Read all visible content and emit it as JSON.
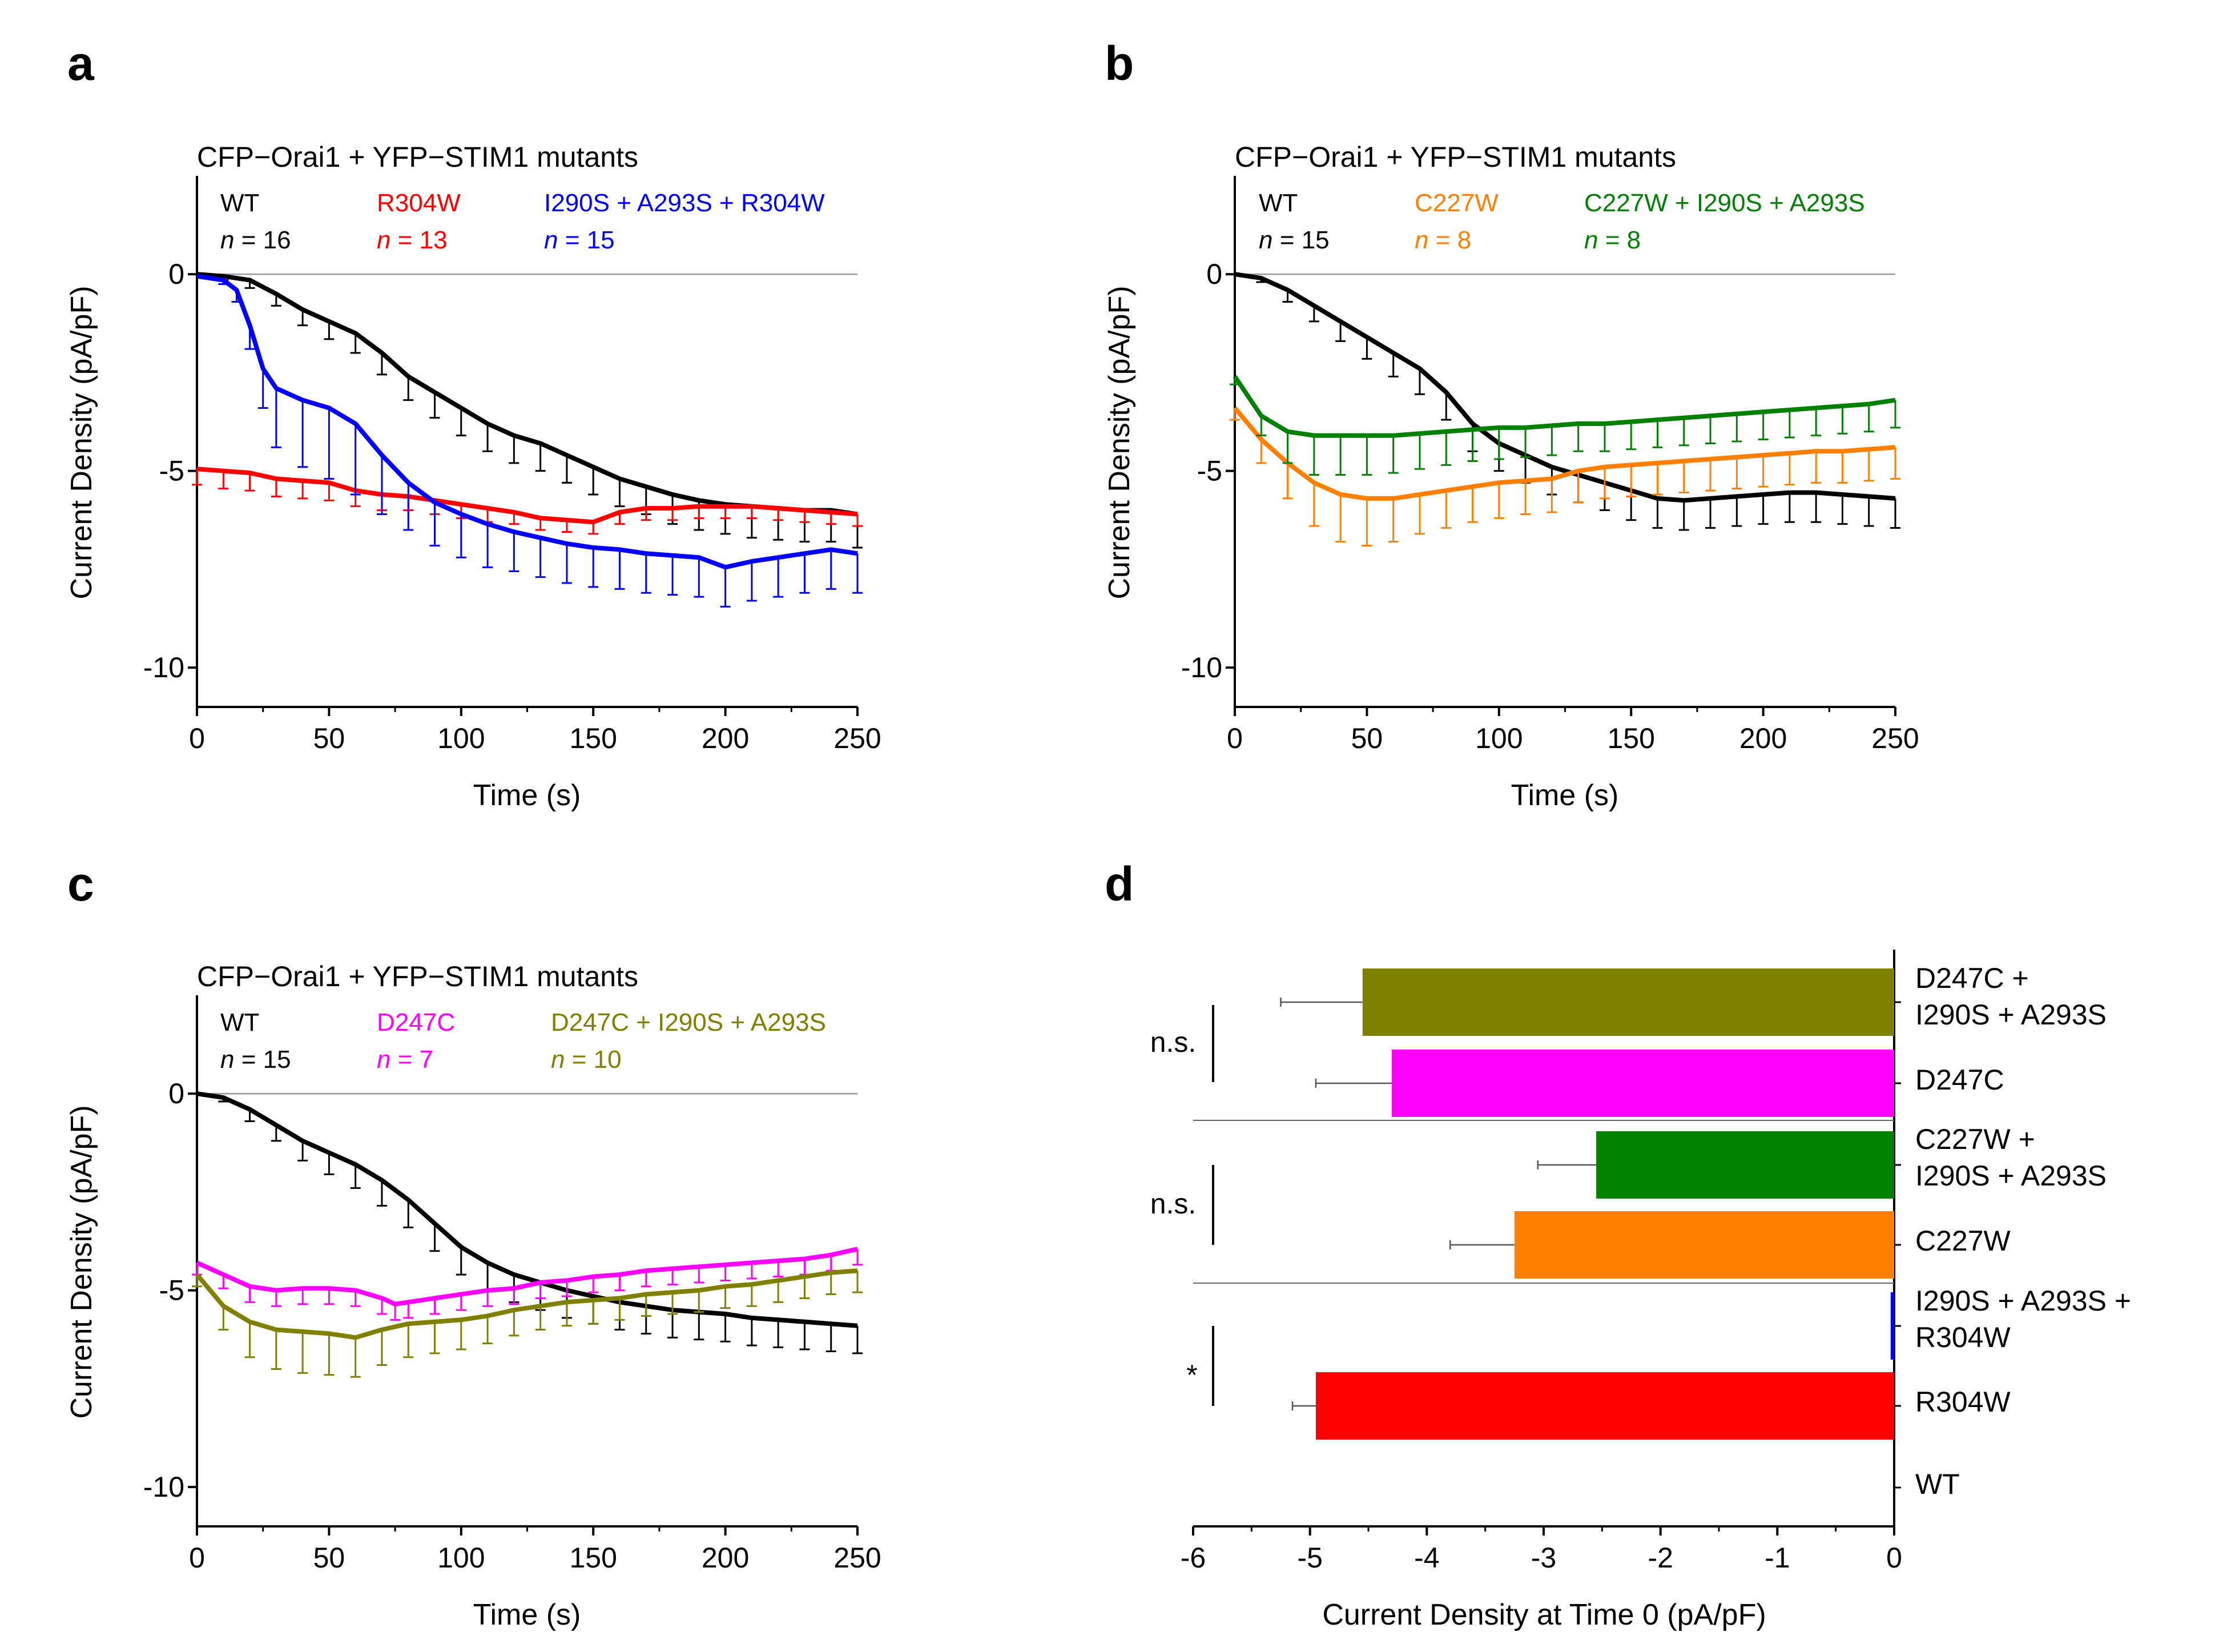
{
  "panels": [
    {
      "letter": "a",
      "title": "CFP−Orai1 + YFP−STIM1 mutants",
      "xlabel": "Time (s)",
      "ylabel": "Current Density (pA/pF)",
      "xticks": [
        "0",
        "50",
        "100",
        "150",
        "200",
        "250"
      ],
      "yticks": [
        "0",
        "-5",
        "-10"
      ],
      "legend": [
        {
          "name": "WT",
          "n_prefix": "n",
          "n_text": " = 16",
          "color": "#000000"
        },
        {
          "name": "R304W",
          "n_prefix": "n",
          "n_text": " = 13",
          "color": "#ff0000"
        },
        {
          "name": "I290S + A293S + R304W",
          "n_prefix": "n",
          "n_text": " = 15",
          "color": "#0000ff"
        }
      ]
    },
    {
      "letter": "b",
      "title": "CFP−Orai1 + YFP−STIM1 mutants",
      "xlabel": "Time (s)",
      "ylabel": "Current Density (pA/pF)",
      "xticks": [
        "0",
        "50",
        "100",
        "150",
        "200",
        "250"
      ],
      "yticks": [
        "0",
        "-5",
        "-10"
      ],
      "legend": [
        {
          "name": "WT",
          "n_prefix": "n",
          "n_text": " = 15",
          "color": "#000000"
        },
        {
          "name": "C227W",
          "n_prefix": "n",
          "n_text": " = 8",
          "color": "#ff8000"
        },
        {
          "name": "C227W + I290S + A293S",
          "n_prefix": "n",
          "n_text": " = 8",
          "color": "#008000"
        }
      ]
    },
    {
      "letter": "c",
      "title": "CFP−Orai1 + YFP−STIM1 mutants",
      "xlabel": "Time (s)",
      "ylabel": "Current Density (pA/pF)",
      "xticks": [
        "0",
        "50",
        "100",
        "150",
        "200",
        "250"
      ],
      "yticks": [
        "0",
        "-5",
        "-10"
      ],
      "legend": [
        {
          "name": "WT",
          "n_prefix": "n",
          "n_text": " = 15",
          "color": "#000000"
        },
        {
          "name": "D247C",
          "n_prefix": "n",
          "n_text": " = 7",
          "color": "#ff00ff"
        },
        {
          "name": "D247C + I290S + A293S",
          "n_prefix": "n",
          "n_text": " = 10",
          "color": "#808000"
        }
      ]
    },
    {
      "letter": "d",
      "xlabel": "Current Density at Time 0 (pA/pF)",
      "xticks": [
        "-6",
        "-5",
        "-4",
        "-3",
        "-2",
        "-1",
        "0"
      ],
      "significance": [
        {
          "label": "n.s."
        },
        {
          "label": "n.s."
        },
        {
          "label": "*"
        }
      ],
      "bar_labels": [
        [
          "D247C +",
          "I290S + A293S"
        ],
        [
          "D247C"
        ],
        [
          "C227W +",
          "I290S + A293S"
        ],
        [
          "C227W"
        ],
        [
          "I290S + A293S +",
          "R304W"
        ],
        [
          "R304W"
        ],
        [
          "WT"
        ]
      ]
    }
  ],
  "chart_data": [
    {
      "type": "line",
      "panel": "a",
      "title": "CFP−Orai1 + YFP−STIM1 mutants",
      "xlabel": "Time (s)",
      "ylabel": "Current Density (pA/pF)",
      "xlim": [
        0,
        250
      ],
      "ylim": [
        -11,
        2.5
      ],
      "zero_line": true,
      "series": [
        {
          "name": "WT",
          "n": 16,
          "color": "#000000",
          "error_direction": "down",
          "x": [
            0,
            10,
            20,
            30,
            40,
            50,
            60,
            70,
            80,
            90,
            100,
            110,
            120,
            130,
            140,
            150,
            160,
            170,
            180,
            190,
            200,
            210,
            220,
            230,
            240,
            250
          ],
          "y": [
            0,
            -0.05,
            -0.15,
            -0.5,
            -0.9,
            -1.2,
            -1.5,
            -2.0,
            -2.6,
            -3.0,
            -3.4,
            -3.8,
            -4.1,
            -4.3,
            -4.6,
            -4.9,
            -5.2,
            -5.4,
            -5.6,
            -5.75,
            -5.85,
            -5.9,
            -5.95,
            -6.0,
            -6.0,
            -6.1
          ],
          "error": [
            0,
            0.1,
            0.2,
            0.3,
            0.4,
            0.45,
            0.5,
            0.55,
            0.6,
            0.65,
            0.7,
            0.7,
            0.7,
            0.7,
            0.7,
            0.7,
            0.7,
            0.7,
            0.75,
            0.75,
            0.75,
            0.8,
            0.8,
            0.8,
            0.8,
            0.85
          ]
        },
        {
          "name": "R304W",
          "n": 13,
          "color": "#ff0000",
          "error_direction": "down",
          "x": [
            0,
            10,
            20,
            30,
            40,
            50,
            60,
            70,
            80,
            90,
            100,
            110,
            120,
            130,
            140,
            150,
            160,
            170,
            180,
            190,
            200,
            210,
            220,
            230,
            240,
            250
          ],
          "y": [
            -4.95,
            -5.0,
            -5.05,
            -5.2,
            -5.25,
            -5.3,
            -5.5,
            -5.6,
            -5.65,
            -5.75,
            -5.85,
            -5.95,
            -6.05,
            -6.2,
            -6.25,
            -6.3,
            -6.05,
            -5.95,
            -5.95,
            -5.9,
            -5.9,
            -5.9,
            -5.95,
            -6.0,
            -6.05,
            -6.1
          ],
          "error": [
            0.4,
            0.45,
            0.45,
            0.45,
            0.45,
            0.45,
            0.4,
            0.4,
            0.35,
            0.35,
            0.35,
            0.35,
            0.3,
            0.3,
            0.3,
            0.3,
            0.3,
            0.3,
            0.3,
            0.3,
            0.3,
            0.3,
            0.3,
            0.3,
            0.3,
            0.3
          ]
        },
        {
          "name": "I290S + A293S + R304W",
          "n": 15,
          "color": "#0000ff",
          "error_direction": "down",
          "x": [
            0,
            10,
            15,
            20,
            25,
            30,
            40,
            50,
            60,
            70,
            80,
            90,
            100,
            110,
            120,
            130,
            140,
            150,
            160,
            170,
            180,
            190,
            200,
            210,
            220,
            230,
            240,
            250
          ],
          "y": [
            -0.05,
            -0.15,
            -0.4,
            -1.3,
            -2.4,
            -2.9,
            -3.2,
            -3.4,
            -3.8,
            -4.6,
            -5.3,
            -5.8,
            -6.1,
            -6.35,
            -6.55,
            -6.7,
            -6.85,
            -6.95,
            -7.0,
            -7.1,
            -7.15,
            -7.2,
            -7.45,
            -7.3,
            -7.2,
            -7.1,
            -7.0,
            -7.1
          ],
          "error": [
            0,
            0.1,
            0.3,
            0.6,
            1.0,
            1.5,
            1.7,
            1.8,
            1.8,
            1.5,
            1.2,
            1.1,
            1.1,
            1.1,
            1.0,
            1.0,
            1.0,
            1.0,
            1.0,
            1.0,
            1.0,
            1.0,
            1.0,
            1.0,
            1.0,
            1.0,
            1.0,
            1.0
          ]
        }
      ]
    },
    {
      "type": "line",
      "panel": "b",
      "title": "CFP−Orai1 + YFP−STIM1 mutants",
      "xlabel": "Time (s)",
      "ylabel": "Current Density (pA/pF)",
      "xlim": [
        0,
        250
      ],
      "ylim": [
        -11,
        2.5
      ],
      "zero_line": true,
      "series": [
        {
          "name": "WT",
          "n": 15,
          "color": "#000000",
          "error_direction": "down",
          "x": [
            0,
            10,
            20,
            30,
            40,
            50,
            60,
            70,
            80,
            90,
            100,
            110,
            120,
            130,
            140,
            150,
            160,
            170,
            180,
            190,
            200,
            210,
            220,
            230,
            240,
            250
          ],
          "y": [
            0,
            -0.1,
            -0.4,
            -0.8,
            -1.2,
            -1.6,
            -2.0,
            -2.4,
            -3.0,
            -3.8,
            -4.3,
            -4.6,
            -4.9,
            -5.1,
            -5.3,
            -5.5,
            -5.7,
            -5.75,
            -5.7,
            -5.65,
            -5.6,
            -5.55,
            -5.55,
            -5.6,
            -5.65,
            -5.7
          ],
          "error": [
            0,
            0.1,
            0.3,
            0.4,
            0.5,
            0.55,
            0.6,
            0.65,
            0.7,
            0.7,
            0.7,
            0.7,
            0.7,
            0.7,
            0.7,
            0.75,
            0.75,
            0.75,
            0.75,
            0.75,
            0.75,
            0.75,
            0.75,
            0.75,
            0.75,
            0.75
          ]
        },
        {
          "name": "C227W",
          "n": 8,
          "color": "#ff8000",
          "error_direction": "down",
          "x": [
            0,
            10,
            20,
            30,
            40,
            50,
            60,
            70,
            80,
            90,
            100,
            110,
            120,
            130,
            140,
            150,
            160,
            170,
            180,
            190,
            200,
            210,
            220,
            230,
            240,
            250
          ],
          "y": [
            -3.4,
            -4.2,
            -4.8,
            -5.3,
            -5.6,
            -5.7,
            -5.7,
            -5.6,
            -5.5,
            -5.4,
            -5.3,
            -5.25,
            -5.2,
            -5.0,
            -4.9,
            -4.85,
            -4.8,
            -4.75,
            -4.7,
            -4.65,
            -4.6,
            -4.55,
            -4.5,
            -4.5,
            -4.45,
            -4.4
          ],
          "error": [
            0.3,
            0.6,
            0.9,
            1.1,
            1.2,
            1.2,
            1.1,
            1.0,
            0.95,
            0.9,
            0.9,
            0.85,
            0.85,
            0.8,
            0.8,
            0.8,
            0.8,
            0.8,
            0.8,
            0.8,
            0.8,
            0.8,
            0.8,
            0.8,
            0.8,
            0.8
          ]
        },
        {
          "name": "C227W + I290S + A293S",
          "n": 8,
          "color": "#008000",
          "error_direction": "down",
          "x": [
            0,
            10,
            20,
            30,
            40,
            50,
            60,
            70,
            80,
            90,
            100,
            110,
            120,
            130,
            140,
            150,
            160,
            170,
            180,
            190,
            200,
            210,
            220,
            230,
            240,
            250
          ],
          "y": [
            -2.6,
            -3.6,
            -4.0,
            -4.1,
            -4.1,
            -4.1,
            -4.1,
            -4.05,
            -4.0,
            -3.95,
            -3.9,
            -3.9,
            -3.85,
            -3.8,
            -3.8,
            -3.75,
            -3.7,
            -3.65,
            -3.6,
            -3.55,
            -3.5,
            -3.45,
            -3.4,
            -3.35,
            -3.3,
            -3.2
          ],
          "error": [
            0.2,
            0.5,
            0.8,
            1.0,
            1.0,
            1.0,
            0.95,
            0.9,
            0.85,
            0.8,
            0.8,
            0.75,
            0.75,
            0.7,
            0.7,
            0.7,
            0.7,
            0.7,
            0.7,
            0.7,
            0.7,
            0.7,
            0.7,
            0.7,
            0.7,
            0.7
          ]
        }
      ]
    },
    {
      "type": "line",
      "panel": "c",
      "title": "CFP−Orai1 + YFP−STIM1 mutants",
      "xlabel": "Time (s)",
      "ylabel": "Current Density (pA/pF)",
      "xlim": [
        0,
        250
      ],
      "ylim": [
        -11,
        2.5
      ],
      "zero_line": true,
      "series": [
        {
          "name": "WT",
          "n": 15,
          "color": "#000000",
          "error_direction": "down",
          "x": [
            0,
            10,
            20,
            30,
            40,
            50,
            60,
            70,
            80,
            90,
            100,
            110,
            120,
            130,
            140,
            150,
            160,
            170,
            180,
            190,
            200,
            210,
            220,
            230,
            240,
            250
          ],
          "y": [
            0,
            -0.1,
            -0.4,
            -0.8,
            -1.2,
            -1.5,
            -1.8,
            -2.2,
            -2.7,
            -3.3,
            -3.9,
            -4.3,
            -4.6,
            -4.8,
            -5.0,
            -5.15,
            -5.3,
            -5.4,
            -5.5,
            -5.55,
            -5.6,
            -5.7,
            -5.75,
            -5.8,
            -5.85,
            -5.9
          ],
          "error": [
            0,
            0.1,
            0.3,
            0.4,
            0.5,
            0.55,
            0.6,
            0.65,
            0.7,
            0.7,
            0.7,
            0.7,
            0.7,
            0.7,
            0.7,
            0.7,
            0.7,
            0.7,
            0.7,
            0.7,
            0.7,
            0.7,
            0.7,
            0.7,
            0.7,
            0.7
          ]
        },
        {
          "name": "D247C",
          "n": 7,
          "color": "#ff00ff",
          "error_direction": "down",
          "x": [
            0,
            10,
            20,
            30,
            40,
            50,
            60,
            70,
            75,
            80,
            90,
            100,
            110,
            120,
            130,
            140,
            150,
            160,
            170,
            180,
            190,
            200,
            210,
            220,
            230,
            240,
            250
          ],
          "y": [
            -4.3,
            -4.6,
            -4.9,
            -5.0,
            -4.95,
            -4.95,
            -5.0,
            -5.2,
            -5.35,
            -5.3,
            -5.2,
            -5.1,
            -5.0,
            -4.95,
            -4.8,
            -4.75,
            -4.65,
            -4.6,
            -4.5,
            -4.45,
            -4.4,
            -4.35,
            -4.3,
            -4.25,
            -4.2,
            -4.1,
            -3.95
          ],
          "error": [
            0.3,
            0.35,
            0.4,
            0.4,
            0.4,
            0.4,
            0.4,
            0.4,
            0.4,
            0.4,
            0.4,
            0.4,
            0.4,
            0.4,
            0.4,
            0.4,
            0.4,
            0.4,
            0.4,
            0.4,
            0.4,
            0.4,
            0.4,
            0.4,
            0.4,
            0.4,
            0.4
          ]
        },
        {
          "name": "D247C + I290S + A293S",
          "n": 10,
          "color": "#808000",
          "error_direction": "down",
          "x": [
            0,
            10,
            20,
            30,
            40,
            50,
            60,
            70,
            80,
            90,
            100,
            110,
            120,
            130,
            140,
            150,
            160,
            170,
            180,
            190,
            200,
            210,
            220,
            230,
            240,
            250
          ],
          "y": [
            -4.6,
            -5.4,
            -5.8,
            -6.0,
            -6.05,
            -6.1,
            -6.2,
            -6.0,
            -5.85,
            -5.8,
            -5.75,
            -5.65,
            -5.5,
            -5.4,
            -5.3,
            -5.25,
            -5.2,
            -5.1,
            -5.05,
            -5.0,
            -4.9,
            -4.85,
            -4.75,
            -4.65,
            -4.55,
            -4.5
          ],
          "error": [
            0.3,
            0.6,
            0.9,
            1.0,
            1.05,
            1.05,
            1.0,
            0.9,
            0.85,
            0.8,
            0.75,
            0.7,
            0.65,
            0.6,
            0.6,
            0.6,
            0.55,
            0.55,
            0.55,
            0.55,
            0.55,
            0.55,
            0.55,
            0.55,
            0.55,
            0.55
          ]
        }
      ]
    },
    {
      "type": "bar",
      "orientation": "horizontal",
      "panel": "d",
      "xlabel": "Current Density at Time 0 (pA/pF)",
      "xlim": [
        -6,
        0
      ],
      "categories": [
        "D247C + I290S + A293S",
        "D247C",
        "C227W + I290S + A293S",
        "C227W",
        "I290S + A293S + R304W",
        "R304W",
        "WT"
      ],
      "values": [
        -4.55,
        -4.3,
        -2.55,
        -3.25,
        -0.03,
        -4.95,
        0
      ],
      "errors": [
        0.7,
        0.65,
        0.5,
        0.55,
        0.0,
        0.2,
        0
      ],
      "colors": [
        "#808000",
        "#ff00ff",
        "#008000",
        "#ff8000",
        "#0000ff",
        "#ff0000",
        "#000000"
      ],
      "comparisons": [
        {
          "label": "n.s.",
          "between": [
            "D247C + I290S + A293S",
            "D247C"
          ]
        },
        {
          "label": "n.s.",
          "between": [
            "C227W + I290S + A293S",
            "C227W"
          ]
        },
        {
          "label": "*",
          "between": [
            "I290S + A293S + R304W",
            "R304W"
          ]
        }
      ]
    }
  ]
}
